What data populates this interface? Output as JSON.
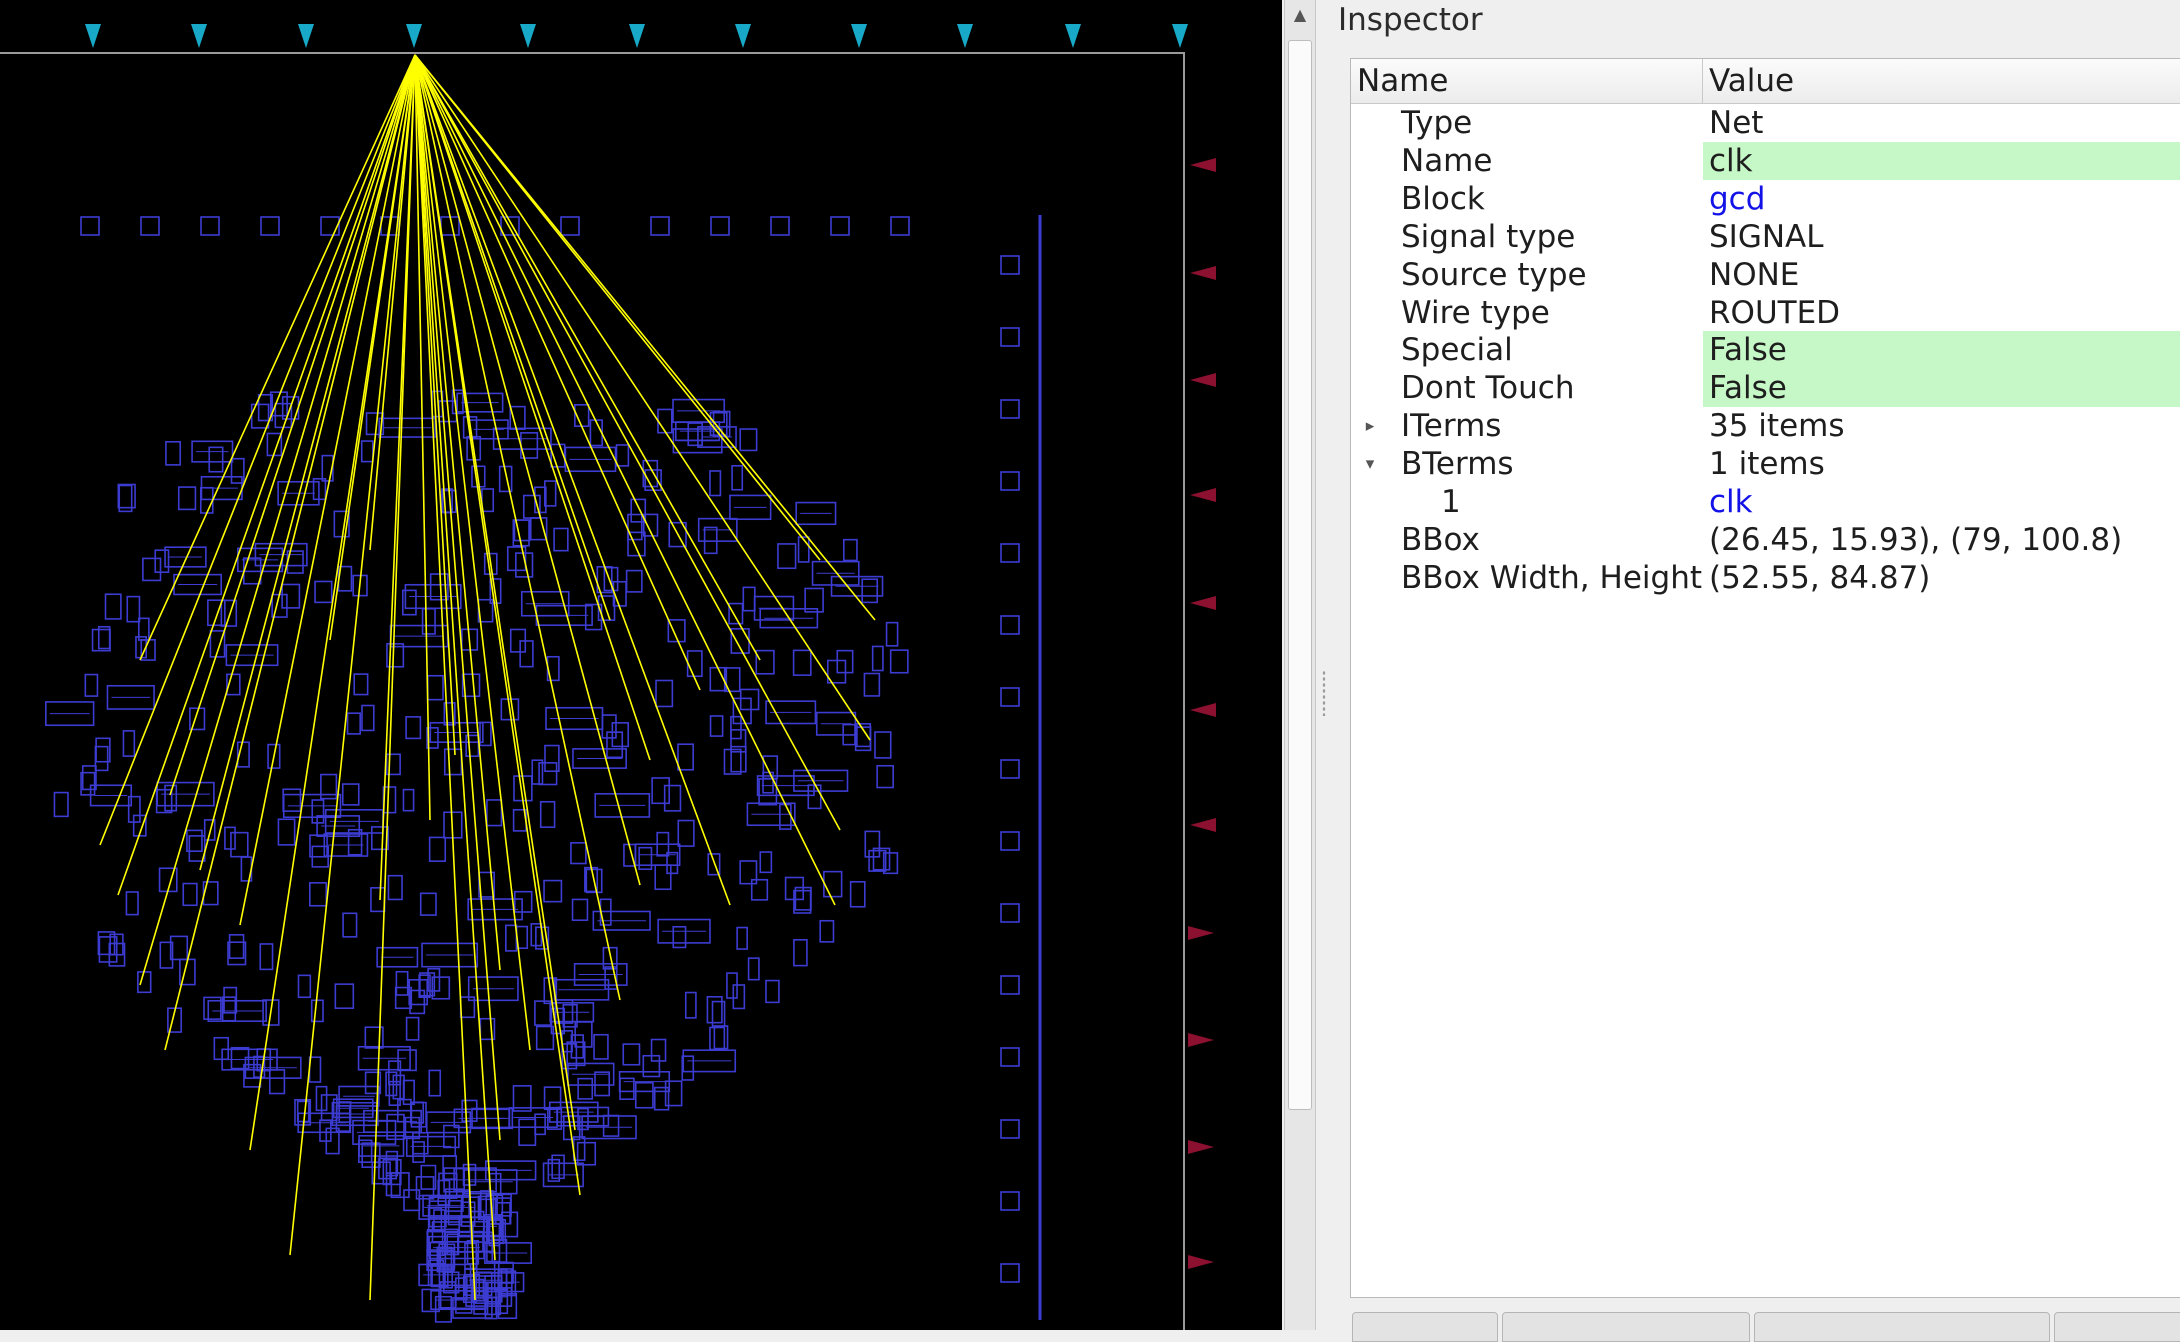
{
  "inspector": {
    "title": "Inspector",
    "columns": {
      "name": "Name",
      "value": "Value"
    },
    "rows": [
      {
        "name": "Type",
        "value": "Net"
      },
      {
        "name": "Name",
        "value": "clk"
      },
      {
        "name": "Block",
        "value": "gcd"
      },
      {
        "name": "Signal type",
        "value": "SIGNAL"
      },
      {
        "name": "Source type",
        "value": "NONE"
      },
      {
        "name": "Wire type",
        "value": "ROUTED"
      },
      {
        "name": "Special",
        "value": "False"
      },
      {
        "name": "Dont Touch",
        "value": "False"
      },
      {
        "name": "ITerms",
        "value": "35 items"
      },
      {
        "name": "BTerms",
        "value": "1 items"
      },
      {
        "name": "1",
        "value": "clk"
      },
      {
        "name": "BBox",
        "value": "(26.45, 15.93), (79, 100.8)"
      },
      {
        "name": "BBox Width, Height",
        "value": "(52.55, 84.87)"
      }
    ],
    "colors": {
      "highlight": "#c6f7c6",
      "link": "#1313e8"
    }
  },
  "layout": {
    "colors": {
      "background": "#000000",
      "cell_outline": "#3c3cd2",
      "net_flyline": "#ffff00",
      "top_pin": "#19a9c8",
      "right_pin": "#8c1030",
      "die_boundary": "#9a9a9a"
    }
  },
  "icons": {
    "scroll_up": "▲",
    "expand_collapsed": "▸",
    "expand_open": "▾"
  }
}
